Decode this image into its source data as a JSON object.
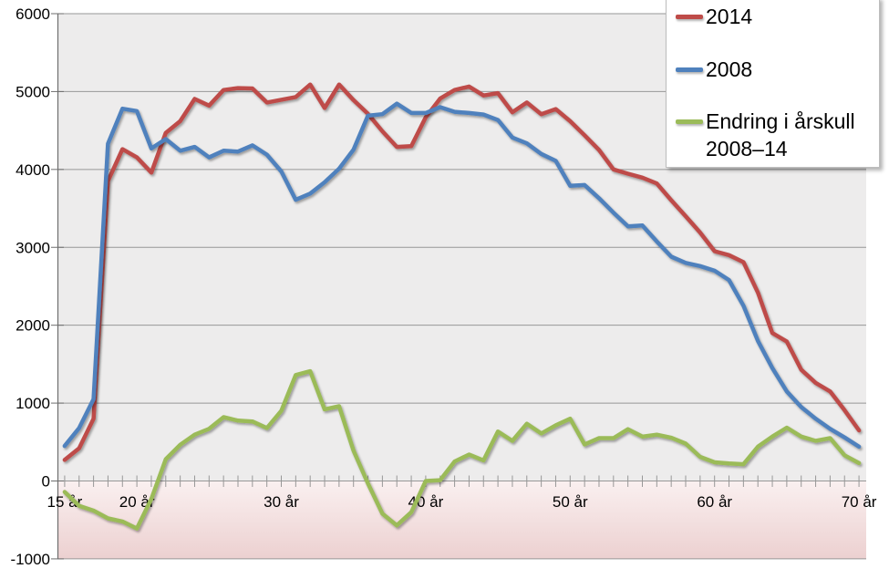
{
  "chart_data": {
    "type": "line",
    "title": "",
    "xlabel": "",
    "ylabel": "",
    "grid": true,
    "legend_position": "top-right",
    "ages": [
      15,
      16,
      17,
      18,
      19,
      20,
      21,
      22,
      23,
      24,
      25,
      26,
      27,
      28,
      29,
      30,
      31,
      32,
      33,
      34,
      35,
      36,
      37,
      38,
      39,
      40,
      41,
      42,
      43,
      44,
      45,
      46,
      47,
      48,
      49,
      50,
      51,
      52,
      53,
      54,
      55,
      56,
      57,
      58,
      59,
      60,
      61,
      62,
      63,
      64,
      65,
      66,
      67,
      68,
      69,
      70
    ],
    "x_axis": {
      "label_ages": [
        15,
        20,
        30,
        40,
        50,
        60,
        70
      ],
      "labels": [
        "15 år",
        "20 år",
        "30 år",
        "40 år",
        "50 år",
        "60 år",
        "70 år"
      ],
      "range": [
        15,
        70
      ]
    },
    "y_axis": {
      "ticks": [
        6000,
        5000,
        4000,
        3000,
        2000,
        1000,
        0,
        -1000
      ],
      "tick_labels": [
        "6000",
        "5000",
        "4000",
        "3000",
        "2000",
        "1000",
        "0",
        "-1000"
      ],
      "ylim": [
        -1000,
        6000
      ]
    },
    "series": [
      {
        "id": "2014",
        "name": "2014",
        "color": "#BE4B48",
        "values": [
          270,
          420,
          800,
          3850,
          4260,
          4155,
          3960,
          4470,
          4620,
          4905,
          4820,
          5020,
          5045,
          5040,
          4860,
          4895,
          4930,
          5090,
          4790,
          5090,
          4890,
          4715,
          4490,
          4290,
          4300,
          4670,
          4910,
          5020,
          5065,
          4950,
          4980,
          4735,
          4860,
          4710,
          4775,
          4620,
          4440,
          4250,
          4000,
          3945,
          3895,
          3820,
          3605,
          3400,
          3190,
          2950,
          2900,
          2810,
          2420,
          1900,
          1790,
          1430,
          1260,
          1150,
          910,
          650
        ]
      },
      {
        "id": "2008",
        "name": "2008",
        "color": "#4F81BD",
        "values": [
          450,
          680,
          1050,
          4330,
          4780,
          4750,
          4270,
          4390,
          4240,
          4290,
          4155,
          4240,
          4230,
          4310,
          4190,
          3975,
          3610,
          3690,
          3835,
          4010,
          4255,
          4690,
          4710,
          4845,
          4725,
          4725,
          4800,
          4740,
          4725,
          4705,
          4635,
          4410,
          4335,
          4200,
          4110,
          3790,
          3800,
          3630,
          3445,
          3270,
          3280,
          3075,
          2880,
          2800,
          2760,
          2700,
          2580,
          2250,
          1800,
          1450,
          1150,
          950,
          800,
          670,
          560,
          440
        ]
      },
      {
        "id": "endring",
        "name": "Endring i årskull 2008–14",
        "color": "#9BBB59",
        "values": [
          -140,
          -320,
          -380,
          -480,
          -520,
          -610,
          -230,
          280,
          465,
          595,
          670,
          820,
          775,
          765,
          680,
          900,
          1360,
          1410,
          920,
          960,
          390,
          -30,
          -420,
          -570,
          -400,
          0,
          10,
          250,
          340,
          265,
          635,
          515,
          735,
          610,
          715,
          800,
          470,
          550,
          550,
          665,
          570,
          595,
          555,
          480,
          310,
          240,
          225,
          215,
          440,
          570,
          685,
          570,
          515,
          550,
          330,
          230
        ]
      }
    ]
  },
  "legend": {
    "items": [
      {
        "label": "2014",
        "color": "#BE4B48"
      },
      {
        "label": "2008",
        "color": "#4F81BD"
      },
      {
        "label": "Endring i årskull 2008–14",
        "color": "#9BBB59"
      }
    ]
  },
  "colors": {
    "plot_background": "#EDECEC",
    "negative_zone_top": "#FAF0F0",
    "negative_zone_bottom": "#ECD0D0",
    "gridline": "#979797",
    "axis_line": "#6E6E6E",
    "text": "#000000"
  }
}
